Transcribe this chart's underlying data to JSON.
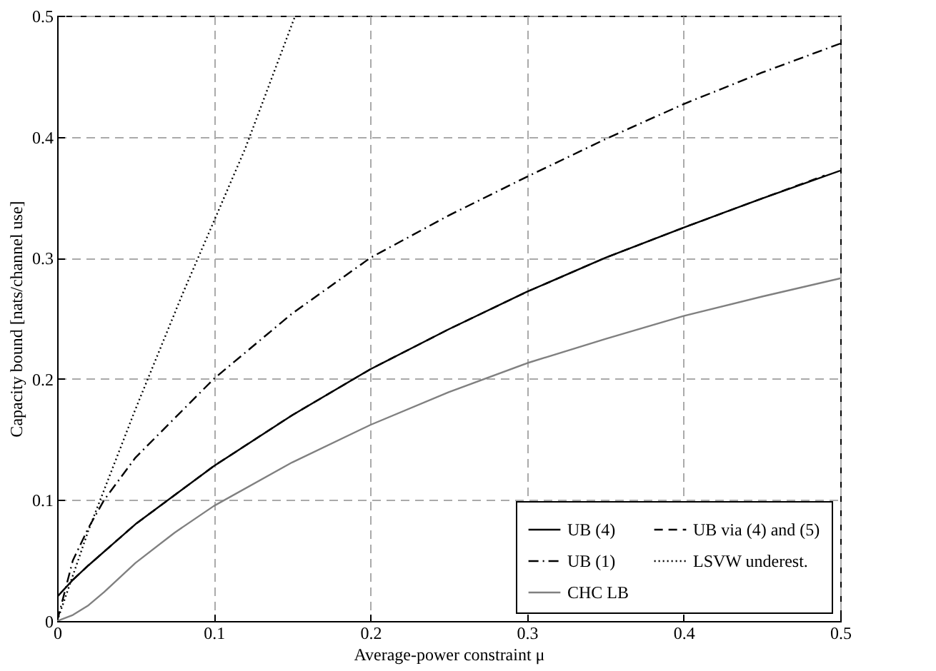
{
  "chart_data": {
    "type": "line",
    "xlabel": "Average-power constraint μ",
    "ylabel": "Capacity bound [nats/channel use]",
    "xlim": [
      0,
      0.5
    ],
    "xticks": [
      0,
      0.1,
      0.2,
      0.3,
      0.4,
      0.5
    ],
    "ylim": [
      0,
      0.5
    ],
    "yticks": [
      0,
      0.1,
      0.2,
      0.3,
      0.4,
      0.5
    ],
    "grid": true,
    "legend": "bottom right",
    "series": [
      {
        "name": "UB (4)",
        "color": "#000000",
        "line_style": "solid",
        "x": [
          0,
          0.01,
          0.02,
          0.05,
          0.1,
          0.15,
          0.2,
          0.25,
          0.3,
          0.35,
          0.4,
          0.45,
          0.5
        ],
        "values": [
          0.02,
          0.034,
          0.046,
          0.08,
          0.128,
          0.17,
          0.208,
          0.241,
          0.272,
          0.3,
          0.325,
          0.349,
          0.372
        ]
      },
      {
        "name": "UB via (4) and (5)",
        "color": "#000000",
        "line_style": "dashed",
        "x": [
          0.01,
          0.02,
          0.05,
          0.1,
          0.15,
          0.2,
          0.25,
          0.3,
          0.35,
          0.4,
          0.45,
          0.49
        ],
        "values": [
          0.034,
          0.046,
          0.08,
          0.128,
          0.17,
          0.208,
          0.241,
          0.272,
          0.3,
          0.325,
          0.349,
          0.368
        ]
      },
      {
        "name": "UB (1)",
        "color": "#000000",
        "line_style": "dashdot",
        "x": [
          0,
          0.01,
          0.02,
          0.03,
          0.05,
          0.1,
          0.15,
          0.2,
          0.25,
          0.3,
          0.35,
          0.4,
          0.45,
          0.5
        ],
        "values": [
          0,
          0.05,
          0.077,
          0.1,
          0.135,
          0.2,
          0.254,
          0.3,
          0.335,
          0.367,
          0.398,
          0.427,
          0.453,
          0.477
        ]
      },
      {
        "name": "LSVW underest.",
        "color": "#000000",
        "line_style": "dotted",
        "x": [
          0,
          0.02,
          0.05,
          0.08,
          0.1,
          0.12,
          0.152
        ],
        "values": [
          0,
          0.075,
          0.175,
          0.27,
          0.33,
          0.39,
          0.5
        ]
      },
      {
        "name": "CHC LB",
        "color": "#808080",
        "line_style": "solid",
        "x": [
          0,
          0.01,
          0.02,
          0.03,
          0.05,
          0.075,
          0.1,
          0.15,
          0.2,
          0.25,
          0.3,
          0.35,
          0.4,
          0.45,
          0.5
        ],
        "values": [
          0,
          0.005,
          0.013,
          0.024,
          0.048,
          0.073,
          0.095,
          0.131,
          0.162,
          0.189,
          0.213,
          0.233,
          0.252,
          0.268,
          0.283
        ]
      }
    ]
  }
}
